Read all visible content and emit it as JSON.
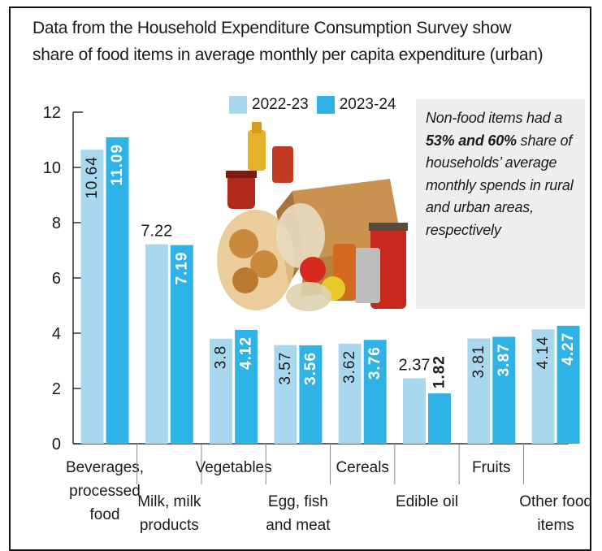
{
  "title_lines": [
    "Data from the Household Expenditure Consumption Survey show",
    "share of food items in average monthly per capita expenditure (urban)"
  ],
  "note": {
    "before": "Non-food items had a ",
    "bold": "53% and 60%",
    "after": " share of households’ average monthly spends in rural and urban areas, respectively"
  },
  "colors": {
    "series_2022": "#a9d8ee",
    "series_2023": "#2fb3e6",
    "label_light": "#ffffff",
    "label_dark": "#1a1a1a"
  },
  "chart_data": {
    "type": "bar",
    "title": "Data from the Household Expenditure Consumption Survey show share of food items in average monthly per capita expenditure (urban)",
    "categories": [
      "Beverages, processed food",
      "Milk, milk products",
      "Vegetables",
      "Egg, fish and meat",
      "Cereals",
      "Edible oil",
      "Fruits",
      "Other food items"
    ],
    "category_lines": [
      [
        "Beverages,",
        "processed",
        "food"
      ],
      [
        "Milk, milk",
        "products"
      ],
      [
        "Vegetables"
      ],
      [
        "Egg, fish",
        "and meat"
      ],
      [
        "Cereals"
      ],
      [
        "Edible oil"
      ],
      [
        "Fruits"
      ],
      [
        "Other food",
        "items"
      ]
    ],
    "series": [
      {
        "name": "2022-23",
        "values": [
          10.64,
          7.22,
          3.8,
          3.57,
          3.62,
          2.37,
          3.81,
          4.14
        ]
      },
      {
        "name": "2023-24",
        "values": [
          11.09,
          7.19,
          4.12,
          3.56,
          3.76,
          1.82,
          3.87,
          4.27
        ]
      }
    ],
    "value_labels": [
      [
        "10.64",
        "7.22",
        "3.8",
        "3.57",
        "3.62",
        "2.37",
        "3.81",
        "4.14"
      ],
      [
        "11.09",
        "7.19",
        "4.12",
        "3.56",
        "3.76",
        "1.82",
        "3.87",
        "4.27"
      ]
    ],
    "y_ticks": [
      "0",
      "2",
      "4",
      "6",
      "8",
      "10",
      "12"
    ],
    "ylim": [
      0,
      12
    ],
    "xlabel": "",
    "ylabel": "",
    "grid": false,
    "legend": "top"
  }
}
